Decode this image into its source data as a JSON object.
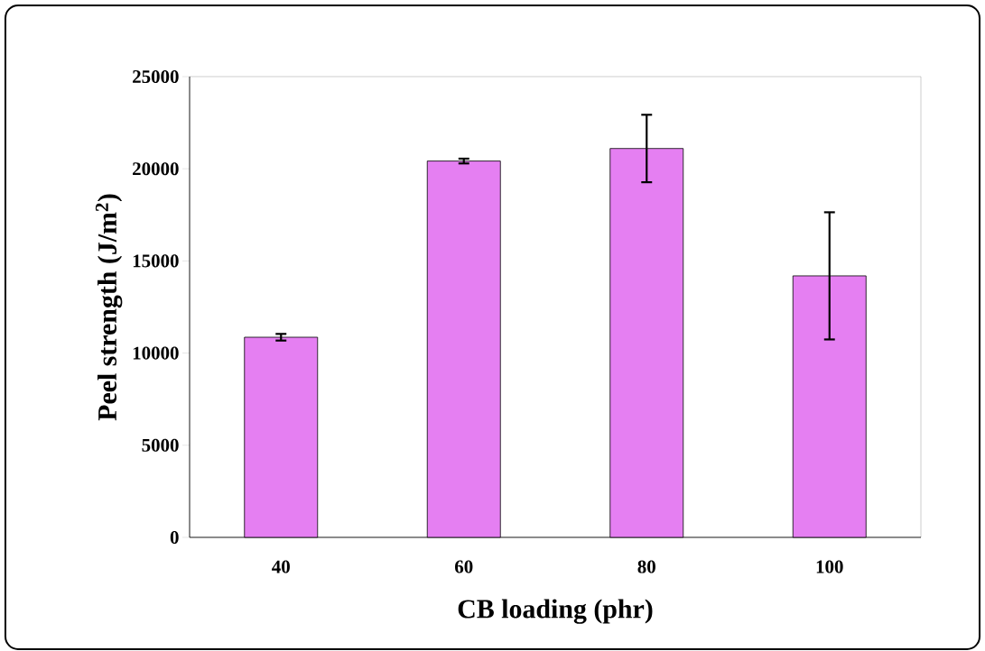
{
  "chart_data": {
    "type": "bar",
    "xlabel": "CB loading (phr)",
    "ylabel": "Peel strength (J/m$^{2}$)",
    "categories": [
      "40",
      "60",
      "80",
      "100"
    ],
    "values": [
      10860,
      20420,
      21100,
      14190
    ],
    "errors": [
      180,
      130,
      1830,
      3450
    ],
    "color": "#e57ff2",
    "ylim": [
      0,
      25000
    ],
    "yticks": [
      0,
      5000,
      10000,
      15000,
      20000,
      25000
    ]
  }
}
